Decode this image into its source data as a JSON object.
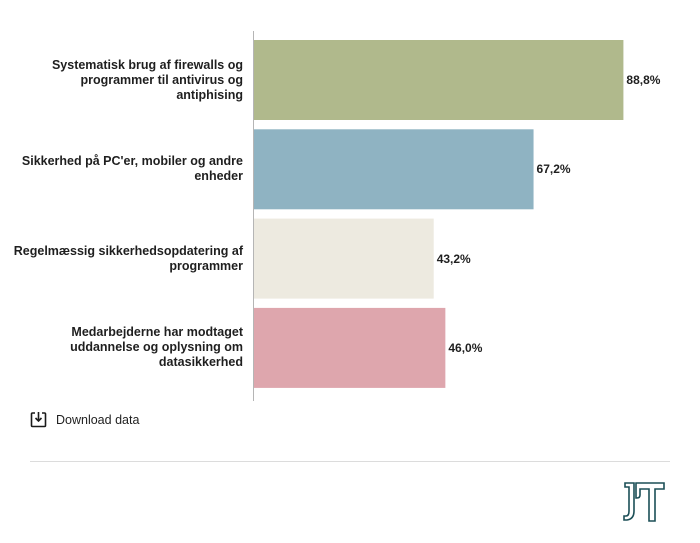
{
  "chart_data": {
    "type": "bar",
    "orientation": "horizontal",
    "categories": [
      "Systematisk brug af firewalls og programmer til antivirus og antiphising",
      "Sikkerhed på PC'er, mobiler og andre enheder",
      "Regelmæssig sikkerhedsopdatering af programmer",
      "Medarbejderne har modtaget uddannelse og oplysning om datasikkerhed"
    ],
    "values": [
      88.8,
      67.2,
      43.2,
      46.0
    ],
    "value_labels": [
      "88,8%",
      "67,2%",
      "43,2%",
      "46,0%"
    ],
    "colors": [
      "#b0b98c",
      "#8fb3c2",
      "#edeae0",
      "#dea6ad"
    ],
    "xlim": [
      0,
      100
    ],
    "grid": false
  },
  "footer": {
    "download_label": "Download data",
    "download_icon": "download-icon",
    "logo_icon": "it-logo"
  },
  "colors": {
    "axis": "#b5b5b5",
    "divider": "#dcdcdc",
    "logo": "#1c4f57"
  }
}
